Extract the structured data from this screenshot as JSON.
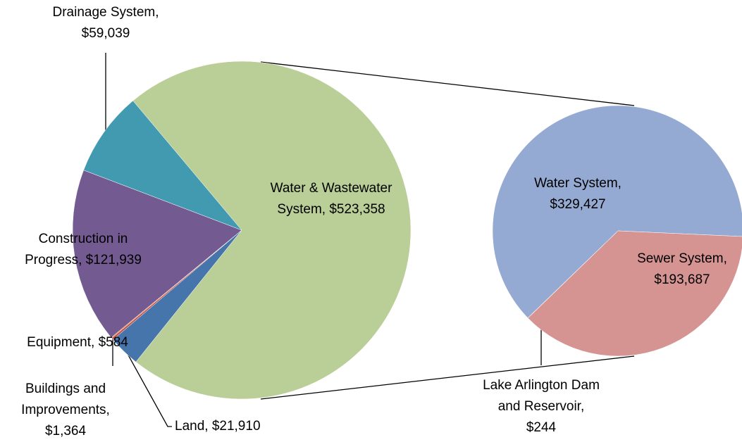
{
  "chart_data": [
    {
      "type": "pie",
      "categories": [
        "Water & Wastewater System,",
        "Land,",
        "Buildings and Improvements,",
        "Equipment,",
        "Construction in Progress,",
        "Drainage System,"
      ],
      "values": [
        523358,
        21910,
        1364,
        584,
        121939,
        59039
      ],
      "value_labels": [
        "$523,358",
        "$21,910",
        "$1,364",
        "$584",
        "$121,939",
        "$59,039"
      ],
      "colors": [
        "#bacf97",
        "#4675ab",
        "#c0504d",
        "#e8782f",
        "#735a91",
        "#429ab0"
      ]
    },
    {
      "type": "pie",
      "categories": [
        "Water System,",
        "Sewer System,",
        "Lake Arlington Dam and Reservoir,"
      ],
      "values": [
        329427,
        193687,
        244
      ],
      "value_labels": [
        "$329,427",
        "$193,687",
        "$244"
      ],
      "colors": [
        "#95aad2",
        "#d59392",
        "#c0504d"
      ]
    }
  ]
}
